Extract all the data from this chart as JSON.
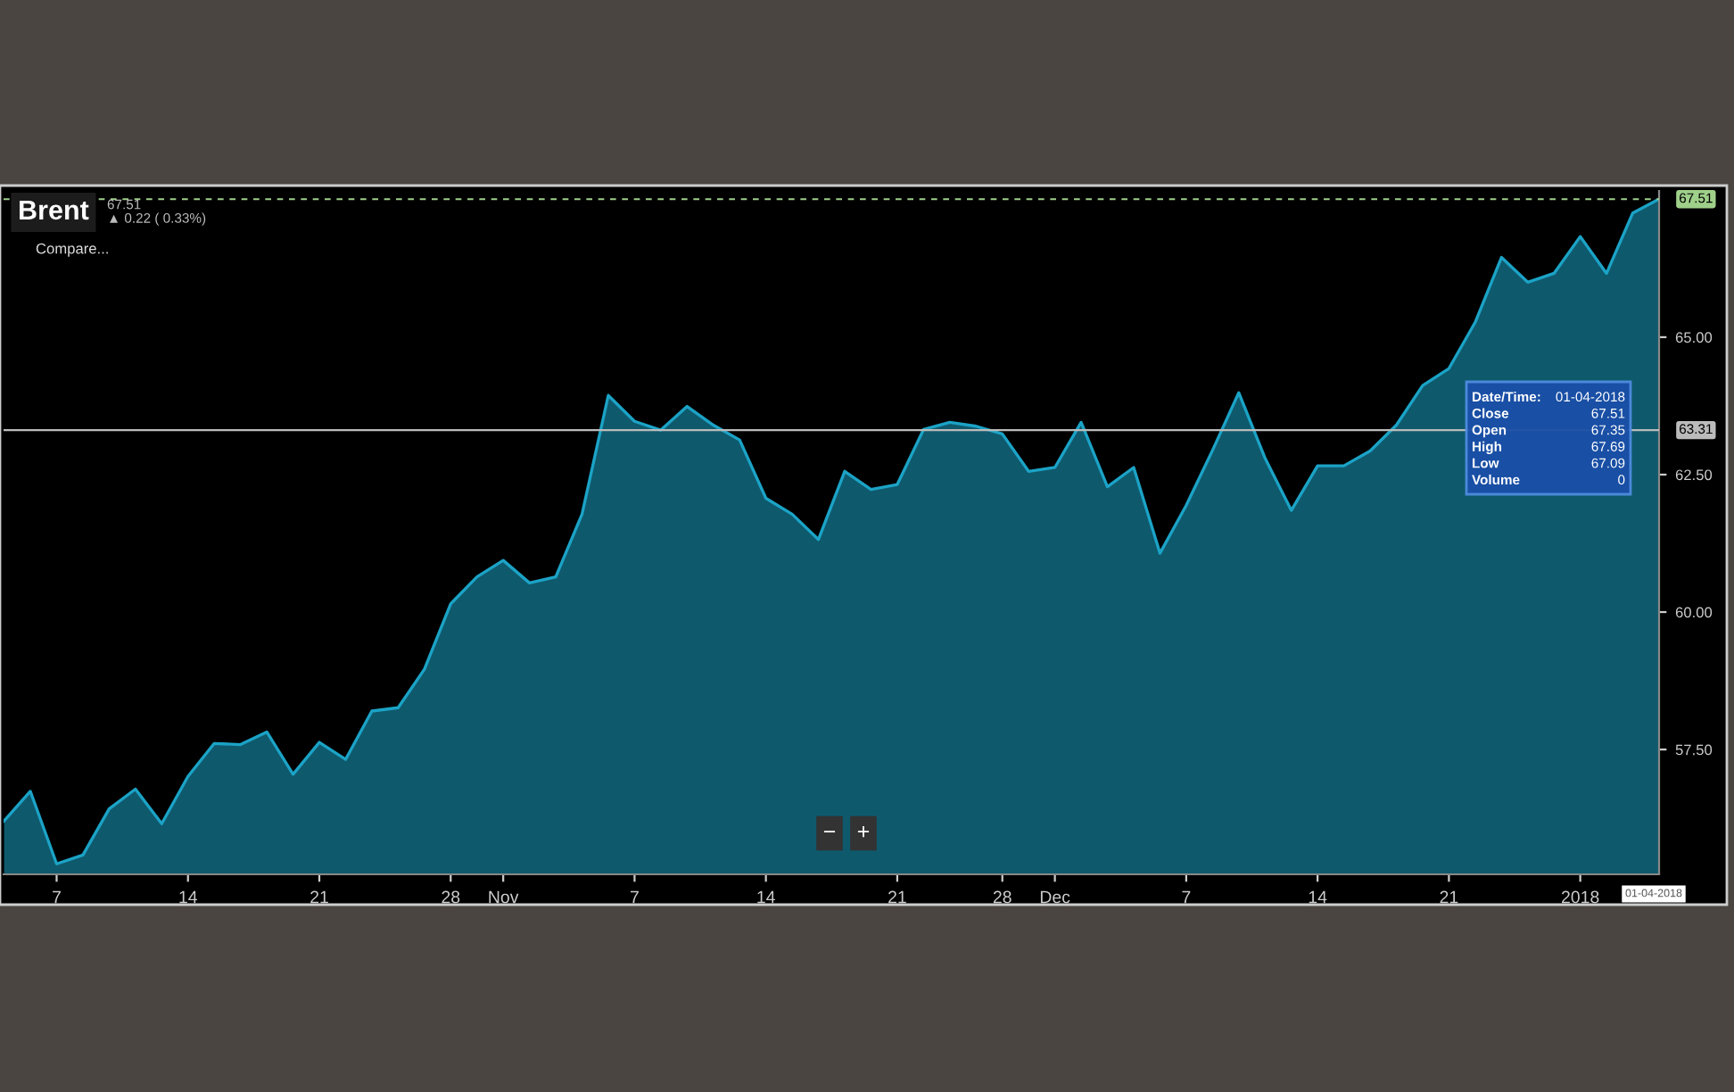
{
  "chart_data": {
    "type": "area",
    "title": "Brent",
    "subtitle": "67.51\n▲ 0.22 ( 0.33%)",
    "categories": [
      null,
      null,
      "7",
      null,
      null,
      null,
      null,
      "14",
      null,
      null,
      null,
      null,
      "21",
      null,
      null,
      null,
      null,
      "28",
      null,
      "Nov",
      null,
      null,
      null,
      null,
      "7",
      null,
      null,
      null,
      null,
      "14",
      null,
      null,
      null,
      null,
      "21",
      null,
      null,
      null,
      "28",
      null,
      "Dec",
      null,
      null,
      null,
      null,
      "7",
      null,
      null,
      null,
      null,
      "14",
      null,
      null,
      null,
      null,
      "21",
      null,
      null,
      null,
      null,
      "2018",
      null,
      null,
      null
    ],
    "series": [
      {
        "color": "#1ba3c6",
        "values": [
          56.2,
          56.74,
          55.42,
          55.58,
          56.42,
          56.78,
          56.15,
          57.01,
          57.61,
          57.59,
          57.82,
          57.05,
          57.63,
          57.32,
          58.2,
          58.26,
          58.96,
          60.15,
          60.64,
          60.94,
          60.53,
          60.64,
          61.78,
          63.94,
          63.47,
          63.31,
          63.74,
          63.4,
          63.13,
          62.07,
          61.78,
          61.32,
          62.56,
          62.23,
          62.32,
          63.32,
          63.45,
          63.38,
          63.24,
          62.56,
          62.63,
          63.45,
          62.28,
          62.63,
          61.07,
          61.94,
          62.94,
          63.99,
          62.8,
          61.85,
          62.66,
          62.66,
          62.93,
          63.4,
          64.12,
          64.43,
          65.27,
          66.45,
          66.0,
          66.16,
          66.83,
          66.16,
          67.26,
          67.51
        ]
      }
    ],
    "ylim": [
      55.23,
      67.66
    ],
    "yticks": [
      {
        "value": 57.5,
        "label": "57.50"
      },
      {
        "value": 60,
        "label": "60.00"
      },
      {
        "value": 62.5,
        "label": "62.50"
      },
      {
        "value": 65,
        "label": "65.00"
      }
    ],
    "ref_lines": [
      {
        "axis": "y",
        "value": 67.51,
        "label": "67.51",
        "color": "#9fd08a",
        "line_style": "dashed"
      },
      {
        "axis": "y",
        "value": 63.31,
        "label": "63.31",
        "color": "#bbbbbb",
        "line_style": "solid"
      }
    ],
    "annotations": [
      "Compare...",
      "−",
      "+",
      "Date/Time: 01-04-2018",
      "Close 67.51",
      "Open 67.35",
      "High 67.69",
      "Low 67.09",
      "Volume 0",
      "01-04-2018"
    ]
  }
}
